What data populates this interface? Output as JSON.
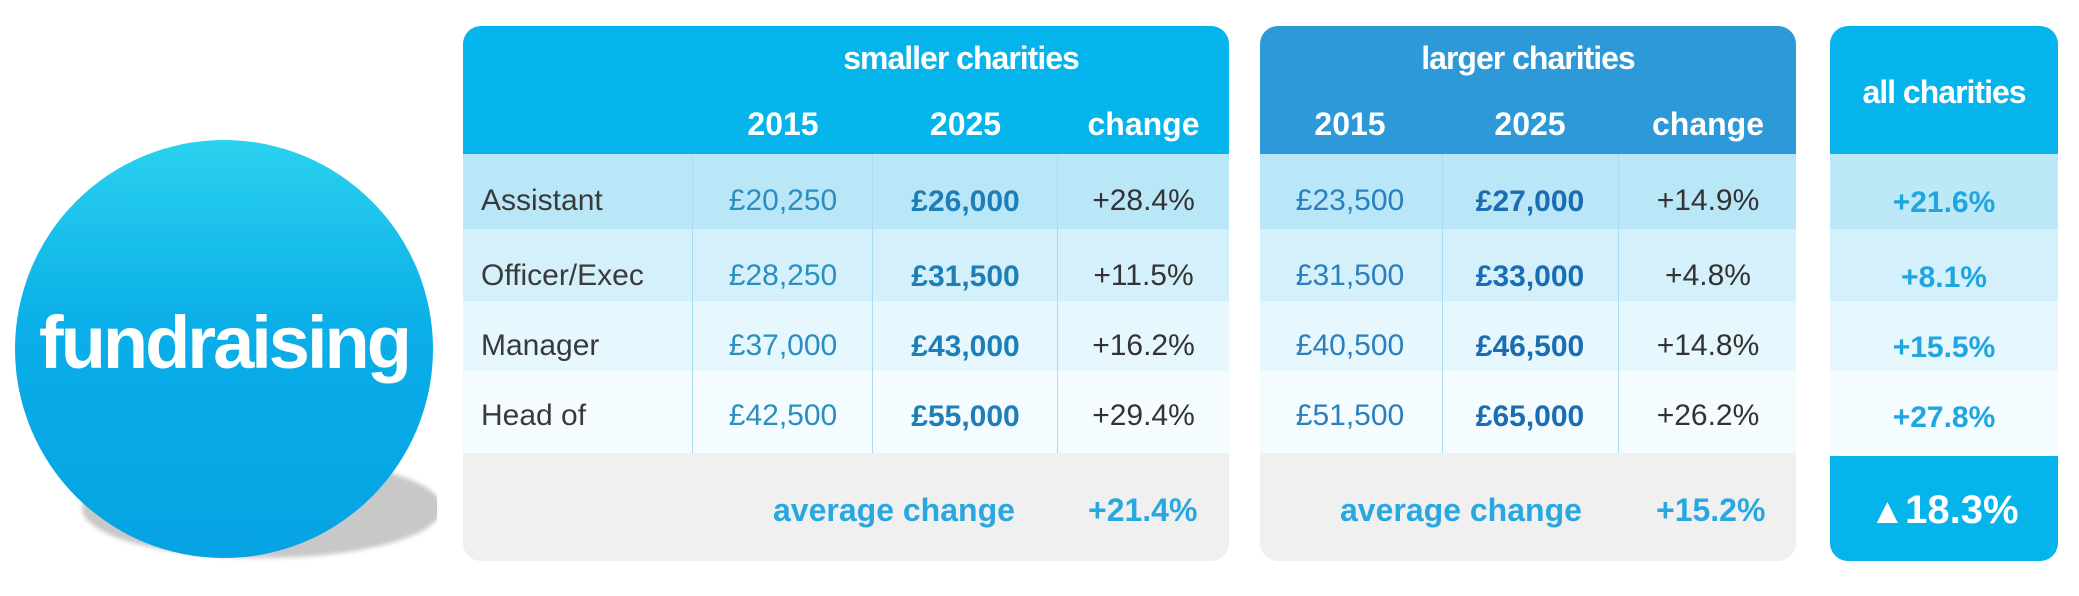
{
  "badge": {
    "label": "fundraising"
  },
  "smaller": {
    "title": "smaller charities",
    "col_2015": "2015",
    "col_2025": "2025",
    "col_change": "change",
    "rows": [
      {
        "role": "Assistant",
        "v2015": "£20,250",
        "v2025": "£26,000",
        "change": "+28.4%"
      },
      {
        "role": "Officer/Exec",
        "v2015": "£28,250",
        "v2025": "£31,500",
        "change": "+11.5%"
      },
      {
        "role": "Manager",
        "v2015": "£37,000",
        "v2025": "£43,000",
        "change": "+16.2%"
      },
      {
        "role": "Head of",
        "v2015": "£42,500",
        "v2025": "£55,000",
        "change": "+29.4%"
      }
    ],
    "avg_label": "average change",
    "avg_value": "+21.4%"
  },
  "larger": {
    "title": "larger charities",
    "col_2015": "2015",
    "col_2025": "2025",
    "col_change": "change",
    "rows": [
      {
        "v2015": "£23,500",
        "v2025": "£27,000",
        "change": "+14.9%"
      },
      {
        "v2015": "£31,500",
        "v2025": "£33,000",
        "change": "+4.8%"
      },
      {
        "v2015": "£40,500",
        "v2025": "£46,500",
        "change": "+14.8%"
      },
      {
        "v2015": "£51,500",
        "v2025": "£65,000",
        "change": "+26.2%"
      }
    ],
    "avg_label": "average change",
    "avg_value": "+15.2%"
  },
  "all": {
    "title": "all charities",
    "rows": [
      "+21.6%",
      "+8.1%",
      "+15.5%",
      "+27.8%"
    ],
    "total_symbol": "▲",
    "total": "18.3%"
  }
}
